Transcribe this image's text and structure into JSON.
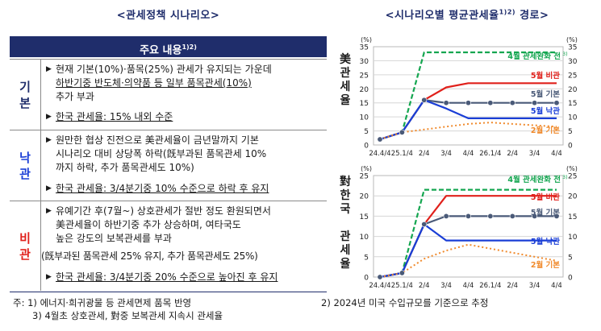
{
  "left": {
    "title": "<관세정책 시나리오>",
    "header": "주요 내용",
    "header_sup": "1)2)",
    "rows": [
      {
        "label_chars": [
          "기",
          "본"
        ],
        "color": "#1f2d6b",
        "lines": [
          "현재 기본(10%)·품목(25%) 관세가 유지되는 가운데",
          "하반기중 반도체·의약품 등 일부 품목관세(10%)",
          "추가 부과"
        ],
        "summary": "한국 관세율: 15% 내외 수준"
      },
      {
        "label_chars": [
          "낙",
          "관"
        ],
        "color": "#1a3ed6",
        "lines": [
          "원만한 협상 진전으로 美관세율이 금년말까지 기본",
          "시나리오 대비 상당폭 하락(旣부과된 품목관세 10%",
          "까지 하락, 추가 품목관세도 10%)"
        ],
        "summary": "한국 관세율: 3/4분기중 10% 수준으로 하락 후 유지"
      },
      {
        "label_chars": [
          "비",
          "관"
        ],
        "color": "#e0201b",
        "lines": [
          "유예기간 후(7월~) 상호관세가 절반 정도 환원되면서",
          "美관세율이 하반기중 추가 상승하며, 여타국도",
          "높은 강도의 보복관세를 부과",
          "(旣부과된 품목관세 25% 유지, 추가 품목관세도 25%)"
        ],
        "summary": "한국 관세율: 3/4분기중 20% 수준으로 높아진 후 유지"
      }
    ],
    "notes": [
      "주: 1) 에너지·희귀광물 등 관세면제 품목 반영",
      "3) 4월초 상호관세, 對중 보복관세 지속시 관세율",
      "2) 2024년 미국 수입규모를 기준으로 추정"
    ]
  },
  "right": {
    "title": "<시나리오별 평균관세율",
    "title_sup": "1)2)",
    "title_end": " 경로>"
  },
  "chart_data": [
    {
      "type": "line",
      "side_label": [
        "美",
        "관",
        "세",
        "율"
      ],
      "y_unit_left": "(%)",
      "y_unit_right": "(%)",
      "ylim": [
        0,
        35
      ],
      "yticks": [
        0,
        5,
        10,
        15,
        20,
        25,
        30,
        35
      ],
      "grid": true,
      "x": [
        "24.4/4",
        "25.1/4",
        "2/4",
        "3/4",
        "4/4",
        "26.1/4",
        "2/4",
        "3/4",
        "4/4"
      ],
      "series": [
        {
          "name": "4월 관세완화 전",
          "sup": "3)",
          "color": "#14a650",
          "dash": "6,3",
          "values": [
            2,
            4.5,
            33,
            33,
            33,
            33,
            33,
            33,
            33
          ]
        },
        {
          "name": "5월 비관",
          "color": "#e0201b",
          "dash": "",
          "values": [
            2,
            4.5,
            16,
            20.5,
            22,
            22,
            22,
            22,
            22
          ]
        },
        {
          "name": "5월 기본",
          "color": "#4a5a78",
          "dash": "",
          "marker": true,
          "values": [
            2,
            4.5,
            16,
            15,
            15,
            15,
            15,
            15,
            15
          ]
        },
        {
          "name": "5월 낙관",
          "color": "#1a3ed6",
          "dash": "",
          "values": [
            2,
            4.5,
            16,
            13,
            9.5,
            9.5,
            9.5,
            9.5,
            9.5
          ]
        },
        {
          "name": "2월 기본",
          "color": "#f08a2c",
          "dash": "2,3",
          "values": [
            2,
            4.5,
            5.5,
            6.5,
            7.5,
            8,
            7.5,
            7,
            6.5
          ]
        }
      ],
      "legend_positions": [
        "top",
        "upper",
        "middle",
        "lower",
        "bottom"
      ]
    },
    {
      "type": "line",
      "side_label": [
        "對",
        "한",
        "국",
        " ",
        "관",
        "세",
        "율"
      ],
      "y_unit_left": "(%)",
      "y_unit_right": "(%)",
      "ylim": [
        0,
        25
      ],
      "yticks": [
        0,
        5,
        10,
        15,
        20,
        25
      ],
      "grid": true,
      "x": [
        "24.4/4",
        "25.1/4",
        "2/4",
        "3/4",
        "4/4",
        "26.1/4",
        "2/4",
        "3/4",
        "4/4"
      ],
      "series": [
        {
          "name": "4월 관세완화 전",
          "sup": "3)",
          "color": "#14a650",
          "dash": "6,3",
          "values": [
            0,
            1,
            21.5,
            21.5,
            21.5,
            21.5,
            21.5,
            21.5,
            21.5
          ]
        },
        {
          "name": "5월 비관",
          "color": "#e0201b",
          "dash": "",
          "values": [
            0,
            1,
            13,
            20,
            20,
            20,
            20,
            20,
            20
          ]
        },
        {
          "name": "5월 기본",
          "color": "#4a5a78",
          "dash": "",
          "marker": true,
          "values": [
            0,
            1,
            13,
            15,
            15,
            15,
            15,
            15,
            15
          ]
        },
        {
          "name": "5월 낙관",
          "color": "#1a3ed6",
          "dash": "",
          "values": [
            0,
            1,
            13,
            9,
            9,
            9,
            9,
            9,
            9
          ]
        },
        {
          "name": "2월 기본",
          "color": "#f08a2c",
          "dash": "2,3",
          "values": [
            0,
            1,
            4.5,
            6.5,
            8,
            7,
            6,
            5,
            4
          ]
        }
      ]
    }
  ]
}
